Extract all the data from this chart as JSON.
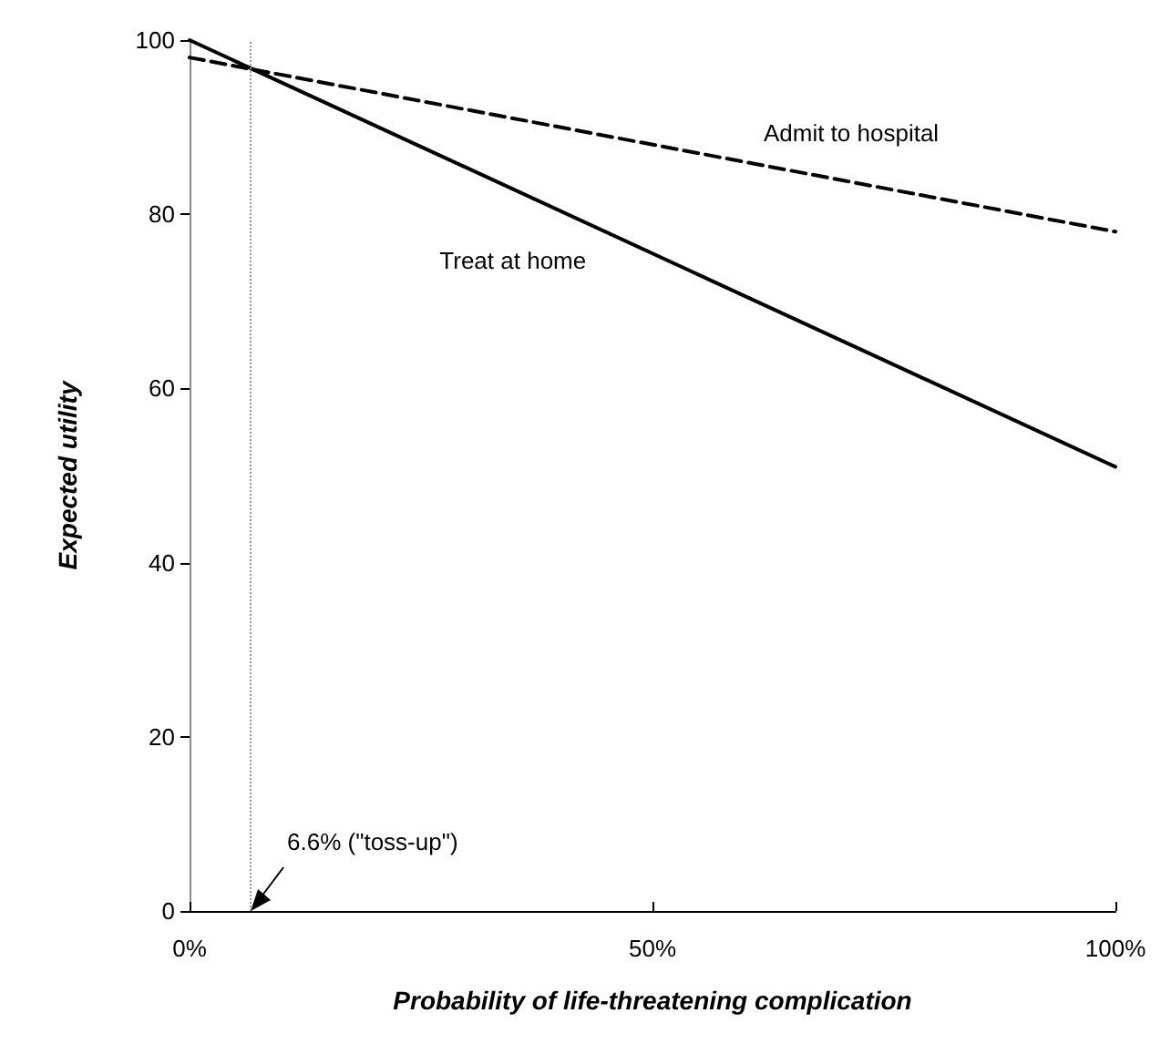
{
  "chart_data": {
    "type": "line",
    "xlabel": "Probability of life-threatening complication",
    "ylabel": "Expected utility",
    "x": [
      0,
      100
    ],
    "series": [
      {
        "name": "Treat at home",
        "color": "#000000",
        "values": [
          100,
          51
        ],
        "line_style": "solid"
      },
      {
        "name": "Admit to hospital",
        "color": "#000000",
        "values": [
          98,
          78
        ],
        "line_style": "dashed"
      }
    ],
    "xlim": [
      0,
      100
    ],
    "xticks": [
      {
        "value": 0,
        "label": "0%"
      },
      {
        "value": 50,
        "label": "50%"
      },
      {
        "value": 100,
        "label": "100%"
      }
    ],
    "ylim": [
      0,
      100
    ],
    "yticks": [
      0,
      20,
      40,
      60,
      80,
      100
    ],
    "ref_lines": [
      {
        "axis": "x",
        "value": 6.6,
        "color": "#999999",
        "line_style": "dotted"
      }
    ],
    "annotations": [
      {
        "text": "6.6% (\"toss-up\")",
        "x": 6.6,
        "y": 0
      }
    ],
    "grid": false,
    "marker": "none"
  }
}
